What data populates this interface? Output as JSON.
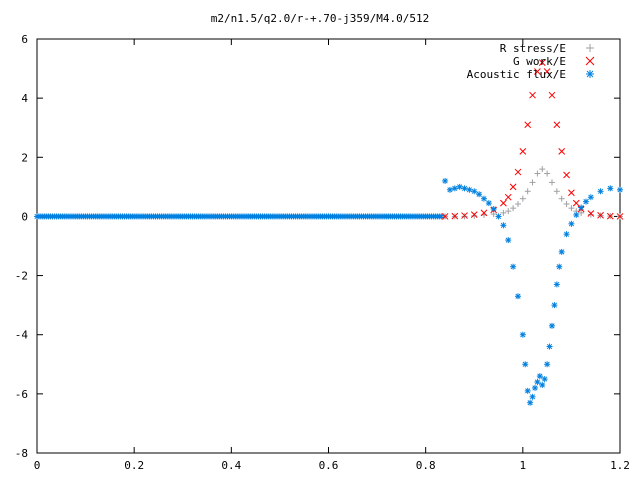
{
  "chart_data": {
    "type": "scatter",
    "title": "m2/n1.5/q2.0/r-+.70-j359/M4.0/512",
    "xlabel": "",
    "ylabel": "",
    "xlim": [
      0,
      1.2
    ],
    "ylim": [
      -8,
      6
    ],
    "x_ticks": [
      "0",
      "0.2",
      "0.4",
      "0.6",
      "0.8",
      "1",
      "1.2"
    ],
    "y_ticks": [
      "-8",
      "-6",
      "-4",
      "-2",
      "0",
      "2",
      "4",
      "6"
    ],
    "grid": false,
    "legend_position": "top-right",
    "series": [
      {
        "name": "R stress/E",
        "marker": "plus",
        "color": "#a0a0a4",
        "x": [
          0.84,
          0.86,
          0.88,
          0.9,
          0.92,
          0.94,
          0.96,
          0.97,
          0.98,
          0.99,
          1.0,
          1.01,
          1.02,
          1.03,
          1.04,
          1.05,
          1.06,
          1.07,
          1.08,
          1.09,
          1.1,
          1.11,
          1.12,
          1.14,
          1.16,
          1.18,
          1.2
        ],
        "y": [
          0.0,
          0.0,
          0.0,
          0.02,
          0.05,
          0.08,
          0.12,
          0.18,
          0.28,
          0.42,
          0.6,
          0.85,
          1.15,
          1.45,
          1.6,
          1.45,
          1.15,
          0.85,
          0.6,
          0.42,
          0.28,
          0.18,
          0.12,
          0.06,
          0.03,
          0.01,
          0.0
        ]
      },
      {
        "name": "G work/E",
        "marker": "cross",
        "color": "#ff0000",
        "x": [
          0.84,
          0.86,
          0.88,
          0.9,
          0.92,
          0.94,
          0.96,
          0.97,
          0.98,
          0.99,
          1.0,
          1.01,
          1.02,
          1.03,
          1.04,
          1.05,
          1.06,
          1.07,
          1.08,
          1.09,
          1.1,
          1.11,
          1.12,
          1.14,
          1.16,
          1.18,
          1.2
        ],
        "y": [
          0.0,
          0.01,
          0.03,
          0.06,
          0.12,
          0.22,
          0.45,
          0.65,
          1.0,
          1.5,
          2.2,
          3.1,
          4.1,
          4.9,
          5.2,
          4.9,
          4.1,
          3.1,
          2.2,
          1.4,
          0.8,
          0.45,
          0.25,
          0.1,
          0.04,
          0.01,
          0.0
        ]
      },
      {
        "name": "Acoustic flux/E",
        "marker": "star",
        "color": "#0080e0",
        "x": [
          0.84,
          0.85,
          0.86,
          0.87,
          0.88,
          0.89,
          0.9,
          0.91,
          0.92,
          0.93,
          0.94,
          0.95,
          0.96,
          0.97,
          0.98,
          0.99,
          1.0,
          1.005,
          1.01,
          1.015,
          1.02,
          1.025,
          1.03,
          1.035,
          1.04,
          1.045,
          1.05,
          1.055,
          1.06,
          1.065,
          1.07,
          1.075,
          1.08,
          1.09,
          1.1,
          1.11,
          1.12,
          1.13,
          1.14,
          1.16,
          1.18,
          1.2
        ],
        "y": [
          1.2,
          0.9,
          0.95,
          1.0,
          0.95,
          0.9,
          0.85,
          0.75,
          0.6,
          0.45,
          0.25,
          0.0,
          -0.3,
          -0.8,
          -1.7,
          -2.7,
          -4.0,
          -5.0,
          -5.9,
          -6.3,
          -6.1,
          -5.8,
          -5.6,
          -5.4,
          -5.7,
          -5.5,
          -5.0,
          -4.4,
          -3.7,
          -3.0,
          -2.3,
          -1.7,
          -1.2,
          -0.6,
          -0.25,
          0.05,
          0.3,
          0.5,
          0.65,
          0.85,
          0.95,
          0.9
        ]
      }
    ]
  }
}
